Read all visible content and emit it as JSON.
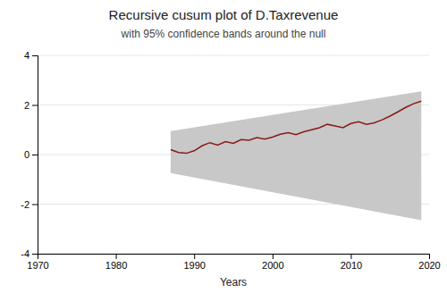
{
  "chart_data": {
    "type": "line",
    "title": "Recursive cusum plot of D.Taxrevenue",
    "subtitle": "with 95% confidence bands around the null",
    "x_label": "Years",
    "xlim": [
      1970,
      2020
    ],
    "ylim": [
      -4,
      4
    ],
    "xticks": [
      1970,
      1980,
      1990,
      2000,
      2010,
      2020
    ],
    "yticks": [
      -4,
      -2,
      0,
      2,
      4
    ],
    "grid": "y",
    "x": [
      1987,
      1988,
      1989,
      1990,
      1991,
      1992,
      1993,
      1994,
      1995,
      1996,
      1997,
      1998,
      1999,
      2000,
      2001,
      2002,
      2003,
      2004,
      2005,
      2006,
      2007,
      2008,
      2009,
      2010,
      2011,
      2012,
      2013,
      2014,
      2015,
      2016,
      2017,
      2018,
      2019
    ],
    "series": [
      {
        "type": "line",
        "color": "#8b1a1a",
        "values": [
          0.2,
          0.08,
          0.05,
          0.15,
          0.35,
          0.48,
          0.38,
          0.52,
          0.45,
          0.6,
          0.58,
          0.68,
          0.62,
          0.7,
          0.82,
          0.88,
          0.8,
          0.92,
          1.0,
          1.08,
          1.22,
          1.15,
          1.08,
          1.25,
          1.32,
          1.22,
          1.28,
          1.4,
          1.55,
          1.72,
          1.9,
          2.05,
          2.15
        ]
      }
    ],
    "band": {
      "x": [
        1987,
        2019
      ],
      "upper": [
        0.95,
        2.55
      ],
      "lower": [
        -0.75,
        -2.65
      ],
      "color": "#c8c8c8"
    }
  }
}
